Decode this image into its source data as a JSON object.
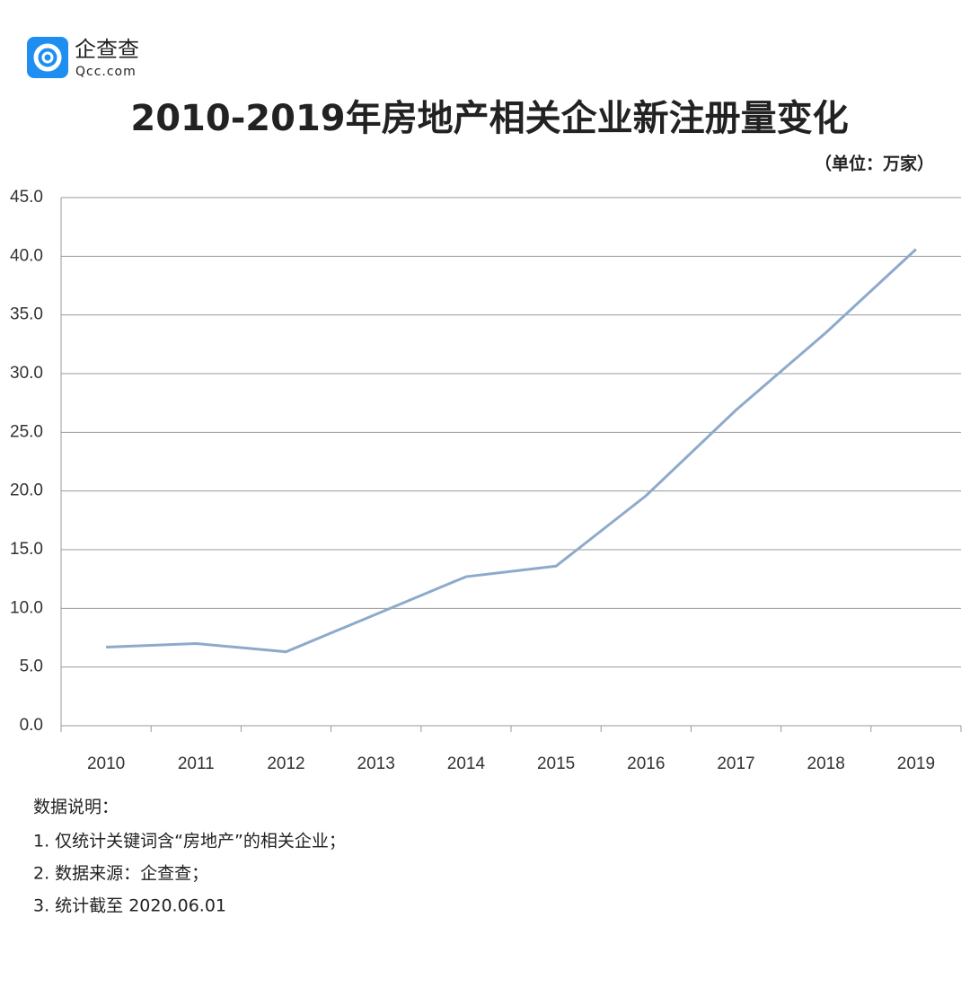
{
  "header": {
    "logo_name": "企查查",
    "logo_url": "Qcc.com"
  },
  "chart_data": {
    "type": "line",
    "title": "2010-2019年房地产相关企业新注册量变化",
    "unit_note": "（单位：万家）",
    "categories": [
      "2010",
      "2011",
      "2012",
      "2013",
      "2014",
      "2015",
      "2016",
      "2017",
      "2018",
      "2019"
    ],
    "values": [
      6.7,
      7.0,
      6.3,
      9.5,
      12.7,
      13.6,
      19.6,
      26.9,
      33.5,
      40.6
    ],
    "color": "#8eaacb",
    "ylim": [
      0,
      45
    ],
    "yticks": [
      {
        "value": 0,
        "label": "0.0"
      },
      {
        "value": 5,
        "label": "5.0"
      },
      {
        "value": 10,
        "label": "10.0"
      },
      {
        "value": 15,
        "label": "15.0"
      },
      {
        "value": 20,
        "label": "20.0"
      },
      {
        "value": 25,
        "label": "25.0"
      },
      {
        "value": 30,
        "label": "30.0"
      },
      {
        "value": 35,
        "label": "35.0"
      },
      {
        "value": 40,
        "label": "40.0"
      },
      {
        "value": 45,
        "label": "45.0"
      }
    ],
    "grid": true
  },
  "notes": {
    "title": "数据说明：",
    "items": [
      "1. 仅统计关键词含“房地产”的相关企业；",
      "2. 数据来源：企查查；",
      "3. 统计截至 2020.06.01"
    ]
  }
}
